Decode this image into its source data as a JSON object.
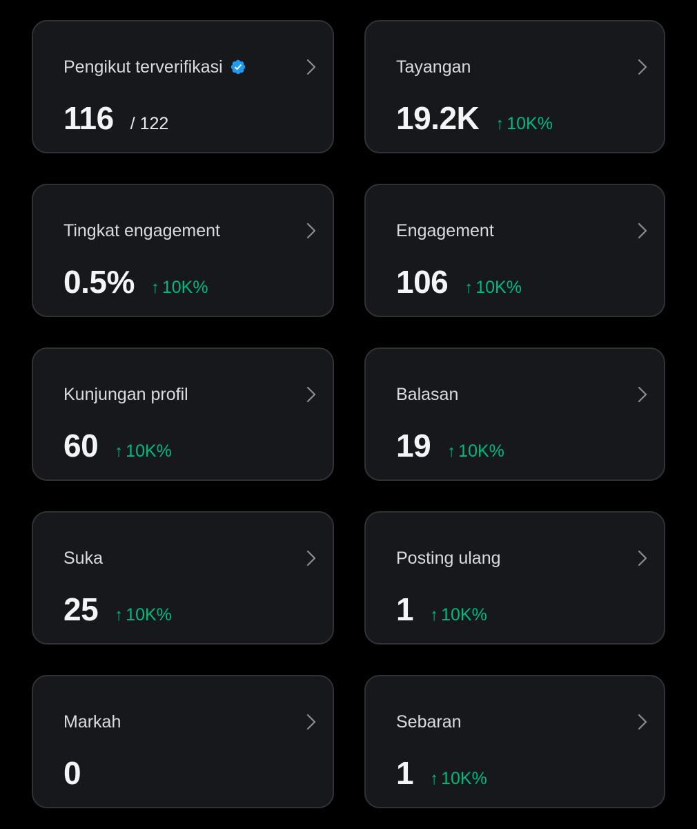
{
  "colors": {
    "background": "#000000",
    "card": "#16181c",
    "border": "#2f3336",
    "positive": "#00ba7c",
    "verified": "#1d9bf0"
  },
  "cards": [
    {
      "title": "Pengikut terverifikasi",
      "verified": true,
      "value": "116",
      "sub": "/ 122",
      "change": ""
    },
    {
      "title": "Tayangan",
      "value": "19.2K",
      "sub": "",
      "change": "10K%"
    },
    {
      "title": "Tingkat engagement",
      "value": "0.5%",
      "sub": "",
      "change": "10K%"
    },
    {
      "title": "Engagement",
      "value": "106",
      "sub": "",
      "change": "10K%"
    },
    {
      "title": "Kunjungan profil",
      "value": "60",
      "sub": "",
      "change": "10K%"
    },
    {
      "title": "Balasan",
      "value": "19",
      "sub": "",
      "change": "10K%"
    },
    {
      "title": "Suka",
      "value": "25",
      "sub": "",
      "change": "10K%"
    },
    {
      "title": "Posting ulang",
      "value": "1",
      "sub": "",
      "change": "10K%"
    },
    {
      "title": "Markah",
      "value": "0",
      "sub": "",
      "change": ""
    },
    {
      "title": "Sebaran",
      "value": "1",
      "sub": "",
      "change": "10K%"
    }
  ],
  "icons": {
    "chevron": "chevron-right-icon",
    "verified": "verified-badge-icon",
    "trend": "arrow-up-icon"
  },
  "arrow_glyph": "↑"
}
